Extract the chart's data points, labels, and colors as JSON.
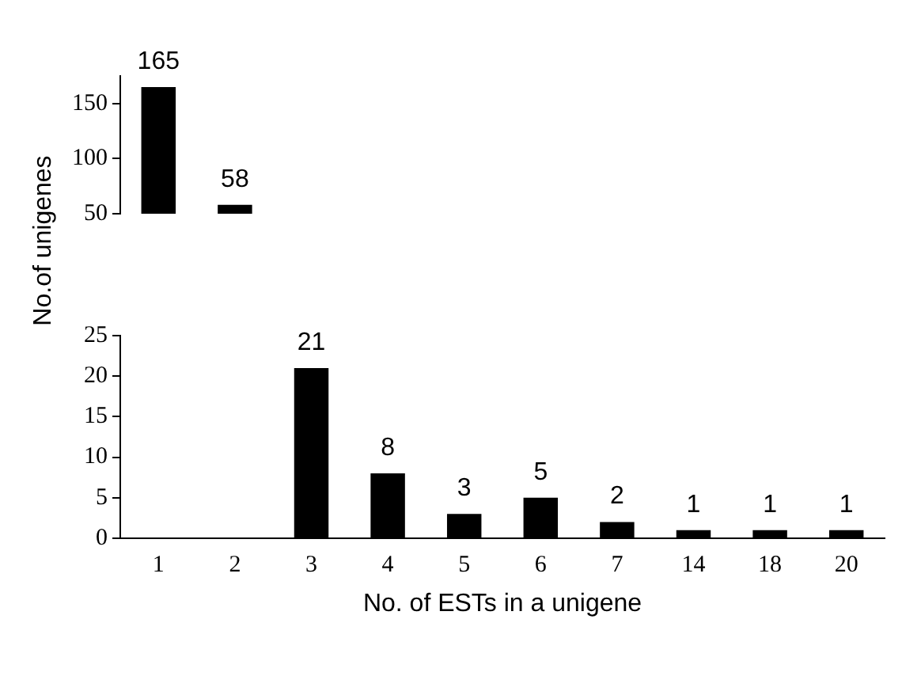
{
  "chart_data": [
    {
      "type": "bar",
      "ylabel": "No.of unigenes",
      "categories": [
        "1",
        "2",
        "3",
        "4",
        "5",
        "6",
        "7",
        "14",
        "18",
        "20"
      ],
      "values": [
        165,
        58,
        null,
        null,
        null,
        null,
        null,
        null,
        null,
        null
      ],
      "value_labels": [
        "165",
        "58",
        null,
        null,
        null,
        null,
        null,
        null,
        null,
        null
      ],
      "color": "#000000",
      "ylim": [
        50,
        175
      ],
      "yticks": [
        50,
        100,
        150
      ],
      "tick_labels": "y",
      "grid": false,
      "legend": false
    },
    {
      "type": "bar",
      "xlabel": "No. of ESTs in a unigene",
      "categories": [
        "1",
        "2",
        "3",
        "4",
        "5",
        "6",
        "7",
        "14",
        "18",
        "20"
      ],
      "values": [
        null,
        null,
        21,
        8,
        3,
        5,
        2,
        1,
        1,
        1
      ],
      "value_labels": [
        null,
        null,
        "21",
        "8",
        "3",
        "5",
        "2",
        "1",
        "1",
        "1"
      ],
      "color": "#000000",
      "ylim": [
        0,
        25
      ],
      "yticks": [
        0,
        5,
        10,
        15,
        20,
        25
      ],
      "grid": false,
      "legend": false
    }
  ]
}
